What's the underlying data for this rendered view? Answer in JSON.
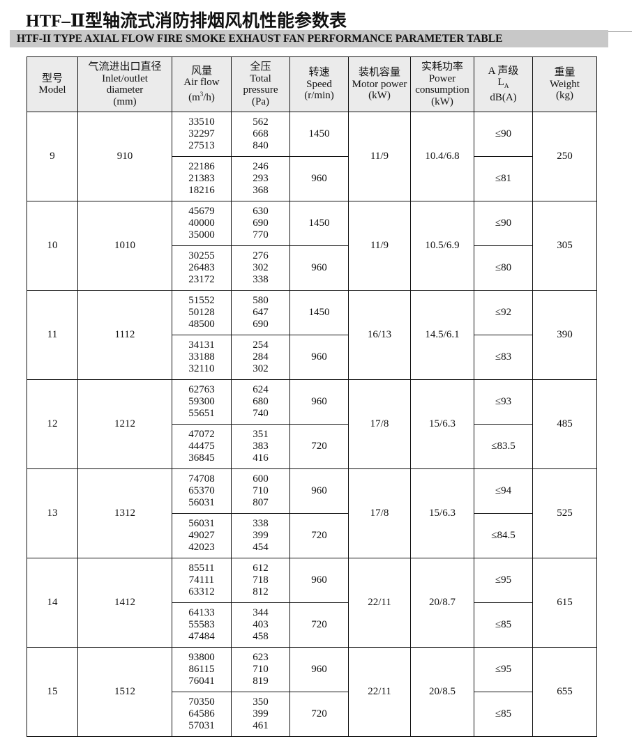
{
  "title": "HTF–Ⅱ型轴流式消防排烟风机性能参数表",
  "subtitle": "HTF-II TYPE AXIAL FLOW FIRE SMOKE EXHAUST FAN PERFORMANCE PARAMETER TABLE",
  "headers": [
    [
      "型号",
      "Model"
    ],
    [
      "气流进出口直径",
      "Inlet/outlet",
      "diameter",
      "(mm)"
    ],
    [
      "风量",
      "Air flow",
      "(m³/h)"
    ],
    [
      "全压",
      "Total",
      "pressure",
      "(Pa)"
    ],
    [
      "转速",
      "Speed",
      "(r/min)"
    ],
    [
      "装机容量",
      "Motor power",
      "(kW)"
    ],
    [
      "实耗功率",
      "Power",
      "consumption",
      "(kW)"
    ],
    [
      "A 声级",
      "LA",
      "dB(A)"
    ],
    [
      "重量",
      "Weight",
      "(kg)"
    ]
  ],
  "models": [
    {
      "model": "9",
      "diameter": "910",
      "motor": "11/9",
      "power": "10.4/6.8",
      "weight": "250",
      "speeds": [
        {
          "airflow": [
            "33510",
            "32297",
            "27513"
          ],
          "pressure": [
            "562",
            "668",
            "840"
          ],
          "speed": "1450",
          "noise": "≤90"
        },
        {
          "airflow": [
            "22186",
            "21383",
            "18216"
          ],
          "pressure": [
            "246",
            "293",
            "368"
          ],
          "speed": "960",
          "noise": "≤81"
        }
      ]
    },
    {
      "model": "10",
      "diameter": "1010",
      "motor": "11/9",
      "power": "10.5/6.9",
      "weight": "305",
      "speeds": [
        {
          "airflow": [
            "45679",
            "40000",
            "35000"
          ],
          "pressure": [
            "630",
            "690",
            "770"
          ],
          "speed": "1450",
          "noise": "≤90"
        },
        {
          "airflow": [
            "30255",
            "26483",
            "23172"
          ],
          "pressure": [
            "276",
            "302",
            "338"
          ],
          "speed": "960",
          "noise": "≤80"
        }
      ]
    },
    {
      "model": "11",
      "diameter": "1112",
      "motor": "16/13",
      "power": "14.5/6.1",
      "weight": "390",
      "speeds": [
        {
          "airflow": [
            "51552",
            "50128",
            "48500"
          ],
          "pressure": [
            "580",
            "647",
            "690"
          ],
          "speed": "1450",
          "noise": "≤92"
        },
        {
          "airflow": [
            "34131",
            "33188",
            "32110"
          ],
          "pressure": [
            "254",
            "284",
            "302"
          ],
          "speed": "960",
          "noise": "≤83"
        }
      ]
    },
    {
      "model": "12",
      "diameter": "1212",
      "motor": "17/8",
      "power": "15/6.3",
      "weight": "485",
      "speeds": [
        {
          "airflow": [
            "62763",
            "59300",
            "55651"
          ],
          "pressure": [
            "624",
            "680",
            "740"
          ],
          "speed": "960",
          "noise": "≤93"
        },
        {
          "airflow": [
            "47072",
            "44475",
            "36845"
          ],
          "pressure": [
            "351",
            "383",
            "416"
          ],
          "speed": "720",
          "noise": "≤83.5"
        }
      ]
    },
    {
      "model": "13",
      "diameter": "1312",
      "motor": "17/8",
      "power": "15/6.3",
      "weight": "525",
      "speeds": [
        {
          "airflow": [
            "74708",
            "65370",
            "56031"
          ],
          "pressure": [
            "600",
            "710",
            "807"
          ],
          "speed": "960",
          "noise": "≤94"
        },
        {
          "airflow": [
            "56031",
            "49027",
            "42023"
          ],
          "pressure": [
            "338",
            "399",
            "454"
          ],
          "speed": "720",
          "noise": "≤84.5"
        }
      ]
    },
    {
      "model": "14",
      "diameter": "1412",
      "motor": "22/11",
      "power": "20/8.7",
      "weight": "615",
      "speeds": [
        {
          "airflow": [
            "85511",
            "74111",
            "63312"
          ],
          "pressure": [
            "612",
            "718",
            "812"
          ],
          "speed": "960",
          "noise": "≤95"
        },
        {
          "airflow": [
            "64133",
            "55583",
            "47484"
          ],
          "pressure": [
            "344",
            "403",
            "458"
          ],
          "speed": "720",
          "noise": "≤85"
        }
      ]
    },
    {
      "model": "15",
      "diameter": "1512",
      "motor": "22/11",
      "power": "20/8.5",
      "weight": "655",
      "speeds": [
        {
          "airflow": [
            "93800",
            "86115",
            "76041"
          ],
          "pressure": [
            "623",
            "710",
            "819"
          ],
          "speed": "960",
          "noise": "≤95"
        },
        {
          "airflow": [
            "70350",
            "64586",
            "57031"
          ],
          "pressure": [
            "350",
            "399",
            "461"
          ],
          "speed": "720",
          "noise": "≤85"
        }
      ]
    }
  ]
}
